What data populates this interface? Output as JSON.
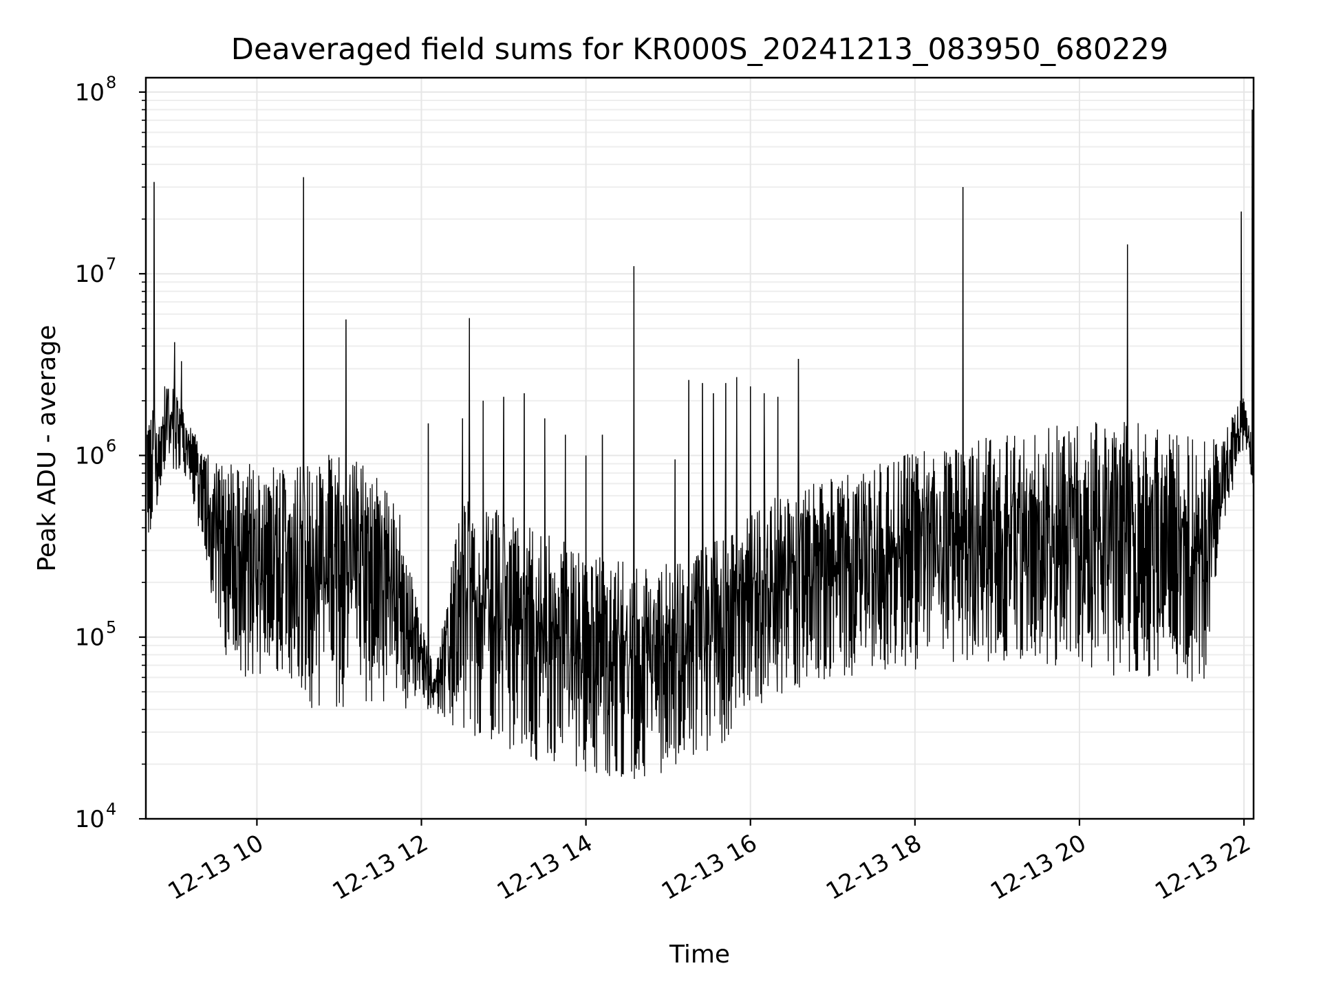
{
  "chart_data": {
    "type": "line",
    "title": "Deaveraged field sums for KR000S_20241213_083950_680229",
    "xlabel": "Time",
    "ylabel": "Peak ADU - average",
    "yscale": "log",
    "ylim": [
      10000,
      120000000
    ],
    "xlim": [
      "2024-12-13 08:39",
      "2024-12-13 22:07"
    ],
    "x_ticks": [
      {
        "value": "2024-12-13 10:00",
        "label": "12-13 10"
      },
      {
        "value": "2024-12-13 12:00",
        "label": "12-13 12"
      },
      {
        "value": "2024-12-13 14:00",
        "label": "12-13 14"
      },
      {
        "value": "2024-12-13 16:00",
        "label": "12-13 16"
      },
      {
        "value": "2024-12-13 18:00",
        "label": "12-13 18"
      },
      {
        "value": "2024-12-13 20:00",
        "label": "12-13 20"
      },
      {
        "value": "2024-12-13 22:00",
        "label": "12-13 22"
      }
    ],
    "y_ticks": [
      {
        "value": 10000,
        "base": "10",
        "exp": "4"
      },
      {
        "value": 100000,
        "base": "10",
        "exp": "5"
      },
      {
        "value": 1000000,
        "base": "10",
        "exp": "6"
      },
      {
        "value": 10000000,
        "base": "10",
        "exp": "7"
      },
      {
        "value": 100000000,
        "base": "10",
        "exp": "8"
      }
    ],
    "grid": true,
    "series": [
      {
        "color": "#000000",
        "envelope": [
          {
            "x": "2024-12-13 08:40",
            "low": 300000,
            "high": 1500000
          },
          {
            "x": "2024-12-13 08:55",
            "low": 900000,
            "high": 2800000
          },
          {
            "x": "2024-12-13 09:10",
            "low": 700000,
            "high": 1500000
          },
          {
            "x": "2024-12-13 09:25",
            "low": 200000,
            "high": 1000000
          },
          {
            "x": "2024-12-13 09:40",
            "low": 60000,
            "high": 900000
          },
          {
            "x": "2024-12-13 10:00",
            "low": 60000,
            "high": 900000
          },
          {
            "x": "2024-12-13 10:20",
            "low": 55000,
            "high": 850000
          },
          {
            "x": "2024-12-13 10:40",
            "low": 40000,
            "high": 900000
          },
          {
            "x": "2024-12-13 11:00",
            "low": 40000,
            "high": 1100000
          },
          {
            "x": "2024-12-13 11:20",
            "low": 40000,
            "high": 850000
          },
          {
            "x": "2024-12-13 11:40",
            "low": 40000,
            "high": 700000
          },
          {
            "x": "2024-12-13 12:00",
            "low": 40000,
            "high": 120000
          },
          {
            "x": "2024-12-13 12:10",
            "low": 38000,
            "high": 65000
          },
          {
            "x": "2024-12-13 12:30",
            "low": 30000,
            "high": 600000
          },
          {
            "x": "2024-12-13 13:00",
            "low": 25000,
            "high": 500000
          },
          {
            "x": "2024-12-13 13:30",
            "low": 20000,
            "high": 380000
          },
          {
            "x": "2024-12-13 14:00",
            "low": 17000,
            "high": 300000
          },
          {
            "x": "2024-12-13 14:30",
            "low": 16000,
            "high": 260000
          },
          {
            "x": "2024-12-13 14:50",
            "low": 16000,
            "high": 240000
          },
          {
            "x": "2024-12-13 15:10",
            "low": 20000,
            "high": 300000
          },
          {
            "x": "2024-12-13 15:40",
            "low": 25000,
            "high": 350000
          },
          {
            "x": "2024-12-13 16:00",
            "low": 40000,
            "high": 500000
          },
          {
            "x": "2024-12-13 16:30",
            "low": 50000,
            "high": 650000
          },
          {
            "x": "2024-12-13 17:00",
            "low": 60000,
            "high": 750000
          },
          {
            "x": "2024-12-13 17:30",
            "low": 60000,
            "high": 900000
          },
          {
            "x": "2024-12-13 18:00",
            "low": 65000,
            "high": 1050000
          },
          {
            "x": "2024-12-13 18:30",
            "low": 65000,
            "high": 1200000
          },
          {
            "x": "2024-12-13 19:00",
            "low": 70000,
            "high": 1350000
          },
          {
            "x": "2024-12-13 19:30",
            "low": 70000,
            "high": 1450000
          },
          {
            "x": "2024-12-13 20:00",
            "low": 65000,
            "high": 1550000
          },
          {
            "x": "2024-12-13 20:30",
            "low": 60000,
            "high": 1550000
          },
          {
            "x": "2024-12-13 21:00",
            "low": 60000,
            "high": 1450000
          },
          {
            "x": "2024-12-13 21:30",
            "low": 50000,
            "high": 1200000
          },
          {
            "x": "2024-12-13 21:45",
            "low": 400000,
            "high": 1300000
          },
          {
            "x": "2024-12-13 22:00",
            "low": 1100000,
            "high": 2300000
          },
          {
            "x": "2024-12-13 22:07",
            "low": 600000,
            "high": 1200000
          }
        ],
        "spikes": [
          {
            "x": "2024-12-13 08:45",
            "y": 32000000
          },
          {
            "x": "2024-12-13 09:00",
            "y": 4200000
          },
          {
            "x": "2024-12-13 09:05",
            "y": 3300000
          },
          {
            "x": "2024-12-13 10:34",
            "y": 34000000
          },
          {
            "x": "2024-12-13 11:05",
            "y": 5600000
          },
          {
            "x": "2024-12-13 12:35",
            "y": 5700000
          },
          {
            "x": "2024-12-13 12:05",
            "y": 1500000
          },
          {
            "x": "2024-12-13 12:30",
            "y": 1600000
          },
          {
            "x": "2024-12-13 12:45",
            "y": 2000000
          },
          {
            "x": "2024-12-13 13:00",
            "y": 2100000
          },
          {
            "x": "2024-12-13 13:15",
            "y": 2200000
          },
          {
            "x": "2024-12-13 13:30",
            "y": 1600000
          },
          {
            "x": "2024-12-13 13:45",
            "y": 1300000
          },
          {
            "x": "2024-12-13 14:00",
            "y": 1000000
          },
          {
            "x": "2024-12-13 14:12",
            "y": 1300000
          },
          {
            "x": "2024-12-13 14:35",
            "y": 11000000
          },
          {
            "x": "2024-12-13 15:05",
            "y": 950000
          },
          {
            "x": "2024-12-13 15:15",
            "y": 2600000
          },
          {
            "x": "2024-12-13 15:25",
            "y": 2500000
          },
          {
            "x": "2024-12-13 15:33",
            "y": 2200000
          },
          {
            "x": "2024-12-13 15:42",
            "y": 2500000
          },
          {
            "x": "2024-12-13 15:50",
            "y": 2700000
          },
          {
            "x": "2024-12-13 16:00",
            "y": 2400000
          },
          {
            "x": "2024-12-13 16:10",
            "y": 2200000
          },
          {
            "x": "2024-12-13 16:20",
            "y": 2100000
          },
          {
            "x": "2024-12-13 16:35",
            "y": 3400000
          },
          {
            "x": "2024-12-13 18:35",
            "y": 30000000
          },
          {
            "x": "2024-12-13 20:35",
            "y": 14500000
          },
          {
            "x": "2024-12-13 21:58",
            "y": 22000000
          },
          {
            "x": "2024-12-13 22:06",
            "y": 80000000
          }
        ]
      }
    ]
  }
}
